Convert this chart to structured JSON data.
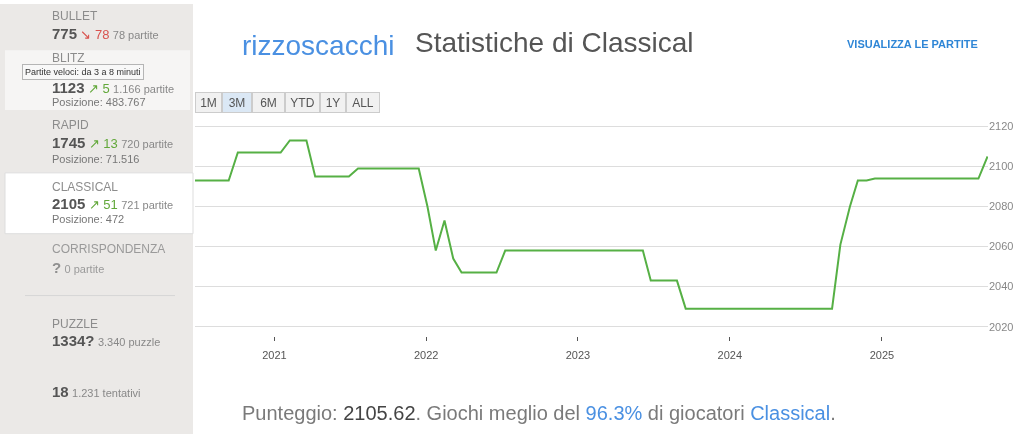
{
  "chart_data": {
    "type": "line",
    "title": "Statistiche di Classical",
    "x": [
      "2020-06-24",
      "2020-09-13",
      "2020-10-05",
      "2021-01-16",
      "2021-02-07",
      "2021-03-19",
      "2021-04-09",
      "2021-06-29",
      "2021-07-21",
      "2021-12-14",
      "2022-01-04",
      "2022-01-24",
      "2022-02-14",
      "2022-03-07",
      "2022-03-27",
      "2022-06-19",
      "2022-07-10",
      "2023-06-06",
      "2023-06-25",
      "2023-08-27",
      "2023-09-17",
      "2024-09-03",
      "2024-09-23",
      "2024-10-16",
      "2024-11-04",
      "2024-11-25",
      "2024-12-15",
      "2025-08-21",
      "2025-09-12"
    ],
    "series": [
      {
        "color": "#56b045",
        "values": [
          2093,
          2093,
          2107,
          2107,
          2113,
          2113,
          2095,
          2095,
          2099,
          2099,
          2080,
          2058,
          2073,
          2054,
          2047,
          2047,
          2058,
          2058,
          2043,
          2043,
          2029,
          2029,
          2061,
          2080,
          2093,
          2093,
          2094,
          2094,
          2105
        ]
      }
    ],
    "xlim": [
      "2020-06-24",
      "2025-09-13"
    ],
    "xticks": [
      "2021",
      "2022",
      "2023",
      "2024",
      "2025"
    ],
    "ylim": [
      2019,
      2121
    ],
    "yticks": [
      2020,
      2040,
      2060,
      2080,
      2100,
      2120
    ],
    "grid": "y",
    "annotations": [
      "BULLET",
      "775",
      "↘ 78",
      "78 partite",
      "BLITZ",
      "1123",
      "↗ 5",
      "1.166 partite",
      "Posizione: 483.767",
      "Partite veloci: da 3 a 8 minuti",
      "RAPID",
      "1745",
      "↗ 13",
      "720 partite",
      "Posizione: 71.516",
      "CLASSICAL",
      "2105",
      "↗ 51",
      "721 partite",
      "Posizione: 472",
      "CORRISPONDENZA",
      "?",
      "0 partite",
      "PUZZLE",
      "1334?",
      "3.340 puzzle",
      "18",
      "1.231 tentativi",
      "rizzoscacchi",
      "VISUALIZZA LE PARTITE",
      "1M",
      "3M",
      "6M",
      "YTD",
      "1Y",
      "ALL",
      "Punteggio: ",
      "2105.62",
      ". Giochi meglio del ",
      "96.3%",
      " di giocatori ",
      "Classical",
      "."
    ]
  }
}
